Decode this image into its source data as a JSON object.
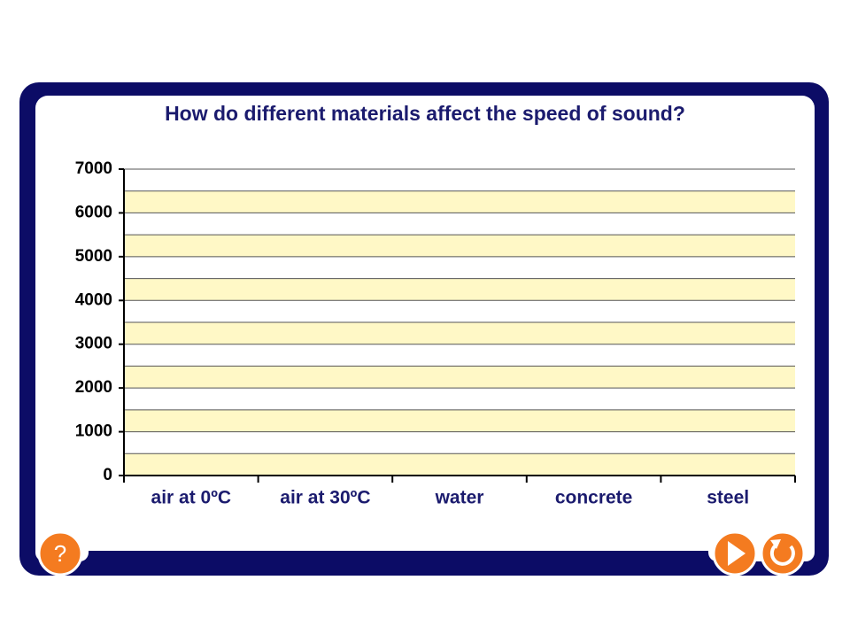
{
  "chart_data": {
    "type": "bar",
    "title": "How do different materials affect the speed of sound?",
    "categories": [
      "air at 0ºC",
      "air at 30ºC",
      "water",
      "concrete",
      "steel"
    ],
    "ylim": [
      0,
      7000
    ],
    "yticks": [
      0,
      1000,
      2000,
      3000,
      4000,
      5000,
      6000,
      7000
    ],
    "grid": true
  },
  "ui": {
    "help_button": "?"
  }
}
